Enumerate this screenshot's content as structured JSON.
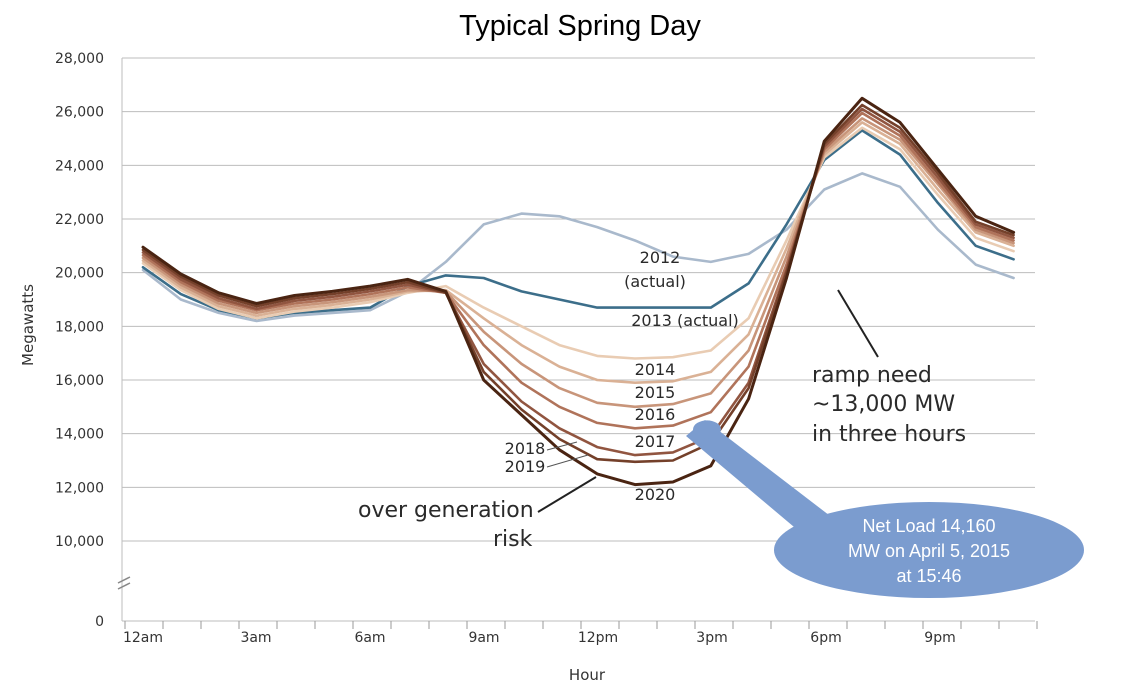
{
  "chart_data": {
    "type": "line",
    "title": "Typical Spring Day",
    "xlabel": "Hour",
    "ylabel": "Megawatts",
    "ylim": [
      0,
      28000
    ],
    "yticks": [
      "0",
      "10,000",
      "12,000",
      "14,000",
      "16,000",
      "18,000",
      "20,000",
      "22,000",
      "24,000",
      "26,000",
      "28,000"
    ],
    "y_axis_break": "between 0 and 10,000",
    "xticks": [
      "12am",
      "3am",
      "6am",
      "9am",
      "12pm",
      "3pm",
      "6pm",
      "9pm"
    ],
    "x": [
      0,
      1,
      2,
      3,
      4,
      5,
      6,
      7,
      8,
      9,
      10,
      11,
      12,
      13,
      14,
      15,
      16,
      17,
      18,
      19,
      20,
      21,
      22,
      23
    ],
    "grid": "horizontal",
    "series": [
      {
        "name": "2012 (actual)",
        "color": "#a9b9cc",
        "values": [
          20100,
          19000,
          18500,
          18200,
          18400,
          18500,
          18600,
          19300,
          20400,
          21800,
          22200,
          22100,
          21700,
          21200,
          20600,
          20400,
          20700,
          21600,
          23100,
          23700,
          23200,
          21600,
          20300,
          19800
        ]
      },
      {
        "name": "2013 (actual)",
        "color": "#3c6e8a",
        "values": [
          20200,
          19200,
          18600,
          18300,
          18500,
          18600,
          18700,
          19500,
          19900,
          19800,
          19300,
          19000,
          18700,
          18700,
          18700,
          18700,
          19600,
          21800,
          24200,
          25300,
          24400,
          22600,
          21000,
          20500
        ]
      },
      {
        "name": "2014",
        "color": "#e9ccb3",
        "values": [
          20350,
          19350,
          18650,
          18300,
          18550,
          18700,
          18900,
          19250,
          19500,
          18700,
          18000,
          17300,
          16900,
          16800,
          16850,
          17100,
          18300,
          21200,
          24300,
          25400,
          24600,
          22900,
          21300,
          20800
        ]
      },
      {
        "name": "2015",
        "color": "#dab195",
        "values": [
          20450,
          19450,
          18750,
          18400,
          18650,
          18800,
          19000,
          19300,
          19350,
          18300,
          17300,
          16500,
          16000,
          15900,
          15950,
          16300,
          17700,
          20900,
          24400,
          25600,
          24800,
          23100,
          21500,
          21000
        ]
      },
      {
        "name": "2016",
        "color": "#c8957a",
        "values": [
          20550,
          19550,
          18850,
          18500,
          18750,
          18900,
          19100,
          19350,
          19300,
          17800,
          16600,
          15700,
          15150,
          15000,
          15100,
          15500,
          17100,
          20600,
          24500,
          25750,
          24950,
          23300,
          21600,
          21100
        ]
      },
      {
        "name": "2017",
        "color": "#b0735a",
        "values": [
          20650,
          19650,
          18950,
          18600,
          18850,
          19000,
          19200,
          19450,
          19250,
          17300,
          15900,
          15000,
          14400,
          14200,
          14300,
          14800,
          16500,
          20300,
          24600,
          25950,
          25100,
          23400,
          21700,
          21200
        ]
      },
      {
        "name": "2018",
        "color": "#915540",
        "values": [
          20750,
          19750,
          19050,
          18650,
          18950,
          19100,
          19300,
          19550,
          19250,
          16600,
          15200,
          14200,
          13500,
          13200,
          13300,
          13900,
          15900,
          20100,
          24700,
          26100,
          25250,
          23550,
          21800,
          21300
        ]
      },
      {
        "name": "2019",
        "color": "#74402a",
        "values": [
          20850,
          19850,
          19150,
          18750,
          19050,
          19200,
          19400,
          19650,
          19250,
          16300,
          14900,
          13800,
          13050,
          12950,
          13000,
          13650,
          15700,
          20000,
          24800,
          26250,
          25400,
          23700,
          21900,
          21400
        ]
      },
      {
        "name": "2020",
        "color": "#4a2412",
        "values": [
          20950,
          19950,
          19250,
          18850,
          19150,
          19300,
          19500,
          19750,
          19300,
          16000,
          14700,
          13400,
          12500,
          12100,
          12200,
          12800,
          15300,
          19800,
          24900,
          26500,
          25600,
          23850,
          22100,
          21500
        ]
      }
    ],
    "labels": {
      "y2012": "2012",
      "actual2012": "(actual)",
      "y2013": "2013 (actual)",
      "y2014": "2014",
      "y2015": "2015",
      "y2016": "2016",
      "y2017": "2017",
      "y2018": "2018",
      "y2019": "2019",
      "y2020": "2020"
    },
    "annotations": {
      "ramp": [
        "ramp need",
        "~13,000 MW",
        "in three hours"
      ],
      "overgen": [
        "over generation",
        "risk"
      ],
      "callout": [
        "Net Load 14,160",
        "MW on April 5, 2015",
        "at 15:46"
      ],
      "callout_color": "#7b9ccf",
      "callout_point": {
        "hour": 14.9,
        "mw": 14160
      }
    }
  }
}
